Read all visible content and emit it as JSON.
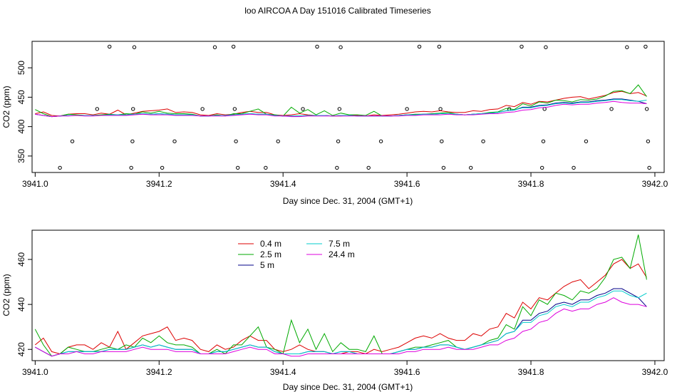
{
  "title": "loo AIRCOA A  Day 151016  Calibrated Timeseries",
  "chart_data": [
    {
      "type": "scatter",
      "xlabel": "Day since Dec. 31, 2004 (GMT+1)",
      "ylabel": "CO2 (ppm)",
      "xlim": [
        3940.995,
        3942.015
      ],
      "ylim": [
        322,
        545
      ],
      "xticks": [
        "3941.0",
        "3941.2",
        "3941.4",
        "3941.6",
        "3941.8",
        "3942.0"
      ],
      "yticks": [
        "350",
        "400",
        "450",
        "500"
      ],
      "calibration_points": [
        {
          "x": 3941.04,
          "y": 330
        },
        {
          "x": 3941.06,
          "y": 375
        },
        {
          "x": 3941.1,
          "y": 430
        },
        {
          "x": 3941.12,
          "y": 536
        },
        {
          "x": 3941.155,
          "y": 330
        },
        {
          "x": 3941.157,
          "y": 375
        },
        {
          "x": 3941.158,
          "y": 430
        },
        {
          "x": 3941.16,
          "y": 535
        },
        {
          "x": 3941.205,
          "y": 330
        },
        {
          "x": 3941.225,
          "y": 375
        },
        {
          "x": 3941.27,
          "y": 430
        },
        {
          "x": 3941.29,
          "y": 535
        },
        {
          "x": 3941.32,
          "y": 536
        },
        {
          "x": 3941.322,
          "y": 430
        },
        {
          "x": 3941.324,
          "y": 375
        },
        {
          "x": 3941.327,
          "y": 330
        },
        {
          "x": 3941.372,
          "y": 330
        },
        {
          "x": 3941.392,
          "y": 375
        },
        {
          "x": 3941.432,
          "y": 430
        },
        {
          "x": 3941.455,
          "y": 536
        },
        {
          "x": 3941.487,
          "y": 330
        },
        {
          "x": 3941.489,
          "y": 375
        },
        {
          "x": 3941.491,
          "y": 430
        },
        {
          "x": 3941.493,
          "y": 535
        },
        {
          "x": 3941.538,
          "y": 330
        },
        {
          "x": 3941.558,
          "y": 375
        },
        {
          "x": 3941.6,
          "y": 430
        },
        {
          "x": 3941.62,
          "y": 536
        },
        {
          "x": 3941.652,
          "y": 536
        },
        {
          "x": 3941.654,
          "y": 430
        },
        {
          "x": 3941.656,
          "y": 375
        },
        {
          "x": 3941.659,
          "y": 330
        },
        {
          "x": 3941.703,
          "y": 330
        },
        {
          "x": 3941.723,
          "y": 375
        },
        {
          "x": 3941.765,
          "y": 430
        },
        {
          "x": 3941.785,
          "y": 536
        },
        {
          "x": 3941.818,
          "y": 330
        },
        {
          "x": 3941.82,
          "y": 375
        },
        {
          "x": 3941.822,
          "y": 430
        },
        {
          "x": 3941.824,
          "y": 535
        },
        {
          "x": 3941.869,
          "y": 330
        },
        {
          "x": 3941.889,
          "y": 375
        },
        {
          "x": 3941.93,
          "y": 430
        },
        {
          "x": 3941.955,
          "y": 535
        },
        {
          "x": 3941.985,
          "y": 536
        },
        {
          "x": 3941.987,
          "y": 430
        },
        {
          "x": 3941.989,
          "y": 375
        },
        {
          "x": 3941.991,
          "y": 330
        }
      ]
    },
    {
      "type": "line",
      "xlabel": "Day since Dec. 31, 2004 (GMT+1)",
      "ylabel": "CO2 (ppm)",
      "xlim": [
        3940.995,
        3942.015
      ],
      "ylim": [
        415,
        473
      ],
      "xticks": [
        "3941.0",
        "3941.2",
        "3941.4",
        "3941.6",
        "3941.8",
        "3942.0"
      ],
      "yticks": [
        "420",
        "440",
        "460"
      ],
      "legend_position": "top-left",
      "x": [
        3941.0,
        3941.0133,
        3941.0267,
        3941.04,
        3941.0533,
        3941.0667,
        3941.08,
        3941.0933,
        3941.1067,
        3941.12,
        3941.1333,
        3941.1467,
        3941.16,
        3941.1733,
        3941.1867,
        3941.2,
        3941.2133,
        3941.2267,
        3941.24,
        3941.2533,
        3941.2667,
        3941.28,
        3941.2933,
        3941.3067,
        3941.32,
        3941.3333,
        3941.3467,
        3941.36,
        3941.3733,
        3941.3867,
        3941.4,
        3941.4133,
        3941.4267,
        3941.44,
        3941.4533,
        3941.4667,
        3941.48,
        3941.4933,
        3941.5067,
        3941.52,
        3941.5333,
        3941.5467,
        3941.56,
        3941.5733,
        3941.5867,
        3941.6,
        3941.6133,
        3941.6267,
        3941.64,
        3941.6533,
        3941.6667,
        3941.68,
        3941.6933,
        3941.7067,
        3941.72,
        3941.7333,
        3941.7467,
        3941.76,
        3941.7733,
        3941.7867,
        3941.8,
        3941.8133,
        3941.8267,
        3941.84,
        3941.8533,
        3941.8667,
        3941.88,
        3941.8933,
        3941.9067,
        3941.92,
        3941.9333,
        3941.9467,
        3941.96,
        3941.9733,
        3941.9867
      ],
      "series": [
        {
          "name": "0.4 m",
          "color": "#dd0000",
          "values": [
            422,
            425,
            419,
            418,
            421,
            422,
            422,
            420,
            423,
            421,
            428,
            420,
            423,
            426,
            427,
            428,
            430,
            424,
            425,
            424,
            420,
            419,
            422,
            420,
            421,
            424,
            426,
            424,
            424,
            420,
            419,
            420,
            422,
            420,
            419,
            419,
            418,
            418,
            419,
            419,
            418,
            420,
            419,
            420,
            421,
            423,
            425,
            426,
            425,
            427,
            425,
            424,
            424,
            427,
            426,
            429,
            430,
            436,
            434,
            441,
            438,
            443,
            442,
            445,
            448,
            450,
            451,
            447,
            450,
            453,
            458,
            460,
            456,
            458,
            452
          ]
        },
        {
          "name": "2.5 m",
          "color": "#00aa00",
          "values": [
            429,
            422,
            417,
            418,
            421,
            420,
            419,
            419,
            420,
            421,
            420,
            422,
            421,
            425,
            423,
            426,
            423,
            422,
            422,
            421,
            418,
            418,
            420,
            418,
            422,
            422,
            426,
            430,
            421,
            420,
            418,
            433,
            423,
            429,
            420,
            427,
            419,
            423,
            420,
            420,
            419,
            426,
            418,
            418,
            419,
            420,
            421,
            421,
            422,
            423,
            424,
            421,
            420,
            421,
            422,
            424,
            425,
            431,
            429,
            439,
            435,
            442,
            440,
            445,
            444,
            442,
            446,
            445,
            447,
            452,
            460,
            461,
            456,
            471,
            451
          ]
        },
        {
          "name": "5 m",
          "color": "#000088",
          "values": [
            421,
            419,
            417,
            418,
            419,
            419,
            419,
            419,
            419,
            420,
            420,
            420,
            421,
            422,
            421,
            422,
            421,
            420,
            420,
            420,
            418,
            418,
            419,
            419,
            420,
            421,
            422,
            421,
            421,
            419,
            418,
            418,
            418,
            419,
            419,
            419,
            418,
            419,
            419,
            418,
            418,
            418,
            418,
            418,
            419,
            420,
            420,
            421,
            421,
            422,
            422,
            421,
            420,
            421,
            422,
            423,
            424,
            427,
            428,
            433,
            433,
            436,
            437,
            440,
            441,
            440,
            442,
            442,
            444,
            445,
            447,
            447,
            445,
            443,
            439
          ]
        },
        {
          "name": "7.5 m",
          "color": "#00cccc",
          "values": [
            421,
            419,
            417,
            418,
            419,
            419,
            419,
            419,
            419,
            420,
            420,
            420,
            421,
            422,
            421,
            422,
            421,
            420,
            420,
            420,
            418,
            418,
            419,
            419,
            420,
            421,
            422,
            421,
            421,
            419,
            418,
            418,
            418,
            419,
            419,
            419,
            418,
            419,
            419,
            418,
            418,
            418,
            418,
            418,
            419,
            420,
            420,
            421,
            421,
            422,
            422,
            421,
            420,
            421,
            422,
            423,
            424,
            427,
            428,
            432,
            432,
            435,
            436,
            439,
            440,
            439,
            441,
            441,
            443,
            444,
            446,
            446,
            444,
            443,
            445
          ]
        },
        {
          "name": "24.4 m",
          "color": "#dd00dd",
          "values": [
            421,
            419,
            417,
            418,
            418,
            419,
            418,
            418,
            419,
            419,
            419,
            419,
            420,
            421,
            420,
            420,
            420,
            419,
            419,
            419,
            418,
            418,
            418,
            418,
            419,
            420,
            421,
            420,
            420,
            418,
            418,
            417,
            417,
            418,
            418,
            418,
            418,
            418,
            418,
            418,
            418,
            418,
            418,
            418,
            418,
            419,
            419,
            420,
            420,
            420,
            421,
            420,
            420,
            420,
            421,
            422,
            422,
            424,
            425,
            428,
            429,
            432,
            433,
            436,
            438,
            437,
            438,
            438,
            440,
            441,
            443,
            441,
            440,
            440,
            439
          ]
        }
      ]
    }
  ]
}
